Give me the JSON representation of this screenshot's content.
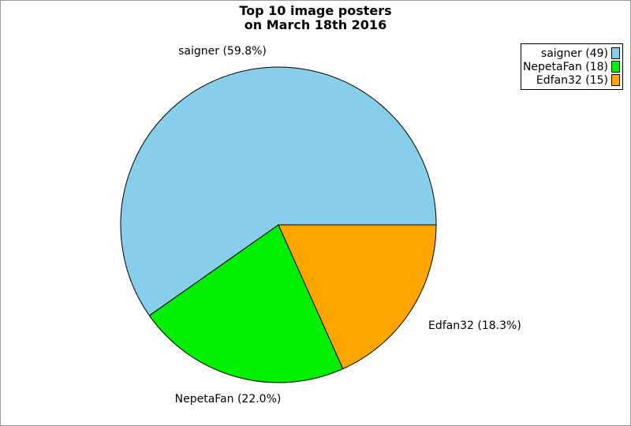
{
  "title": {
    "line1": "Top 10 image posters",
    "line2": "on March 18th 2016"
  },
  "chart_data": {
    "type": "pie",
    "title": "Top 10 image posters on March 18th 2016",
    "categories": [
      "saigner",
      "NepetaFan",
      "Edfan32"
    ],
    "values": [
      49,
      18,
      15
    ],
    "percentages": [
      59.8,
      22.0,
      18.3
    ],
    "slice_labels": [
      "saigner (59.8%)",
      "NepetaFan (22.0%)",
      "Edfan32 (18.3%)"
    ],
    "colors": [
      "#87CEEB",
      "#00EE00",
      "#FFA500"
    ],
    "stroke_color": "#000000",
    "start_angle_deg": 0,
    "direction": "counterclockwise",
    "legend_position": "top-right"
  },
  "legend": {
    "items": [
      {
        "label": "saigner (49)"
      },
      {
        "label": "NepetaFan (18)"
      },
      {
        "label": "Edfan32 (15)"
      }
    ]
  }
}
